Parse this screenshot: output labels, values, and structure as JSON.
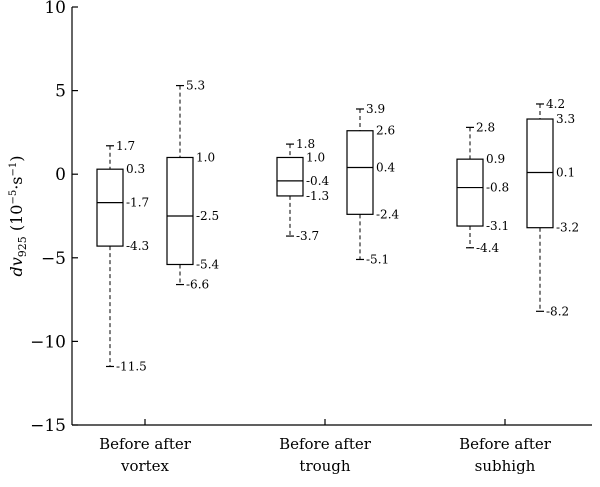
{
  "chart_data": {
    "type": "box",
    "ylabel": {
      "main": "dv",
      "sub": "925",
      "units": "(10",
      "units_exp": "−5",
      "units_mid": "·s",
      "units_exp2": "−1",
      "units_end": ")"
    },
    "ylim": [
      -15,
      10
    ],
    "yticks": [
      {
        "value": 10,
        "label": "10"
      },
      {
        "value": 5,
        "label": "5"
      },
      {
        "value": 0,
        "label": "0"
      },
      {
        "value": -5,
        "label": "−5"
      },
      {
        "value": -10,
        "label": "−10"
      },
      {
        "value": -15,
        "label": "−15"
      }
    ],
    "groups": [
      {
        "label_line1": "Before after",
        "label_line2": "vortex",
        "boxes": [
          {
            "name": "before",
            "min": -11.5,
            "q1": -4.3,
            "median": -1.7,
            "q3": 0.3,
            "max": 1.7,
            "labels": {
              "min": "-11.5",
              "q1": "-4.3",
              "median": "-1.7",
              "q3": "0.3",
              "max": "1.7"
            }
          },
          {
            "name": "after",
            "min": -6.6,
            "q1": -5.4,
            "median": -2.5,
            "q3": 1.0,
            "max": 5.3,
            "labels": {
              "min": "-6.6",
              "q1": "-5.4",
              "median": "-2.5",
              "q3": "1.0",
              "max": "5.3"
            }
          }
        ]
      },
      {
        "label_line1": "Before after",
        "label_line2": "trough",
        "boxes": [
          {
            "name": "before",
            "min": -3.7,
            "q1": -1.3,
            "median": -0.4,
            "q3": 1.0,
            "max": 1.8,
            "labels": {
              "min": "-3.7",
              "q1": "-1.3",
              "median": "-0.4",
              "q3": "1.0",
              "max": "1.8"
            }
          },
          {
            "name": "after",
            "min": -5.1,
            "q1": -2.4,
            "median": 0.4,
            "q3": 2.6,
            "max": 3.9,
            "labels": {
              "min": "-5.1",
              "q1": "-2.4",
              "median": "0.4",
              "q3": "2.6",
              "max": "3.9"
            }
          }
        ]
      },
      {
        "label_line1": "Before after",
        "label_line2": "subhigh",
        "boxes": [
          {
            "name": "before",
            "min": -4.4,
            "q1": -3.1,
            "median": -0.8,
            "q3": 0.9,
            "max": 2.8,
            "labels": {
              "min": "-4.4",
              "q1": "-3.1",
              "median": "-0.8",
              "q3": "0.9",
              "max": "2.8"
            }
          },
          {
            "name": "after",
            "min": -8.2,
            "q1": -3.2,
            "median": 0.1,
            "q3": 3.3,
            "max": 4.2,
            "labels": {
              "min": "-8.2",
              "q1": "-3.2",
              "median": "0.1",
              "q3": "3.3",
              "max": "4.2"
            }
          }
        ]
      }
    ]
  }
}
